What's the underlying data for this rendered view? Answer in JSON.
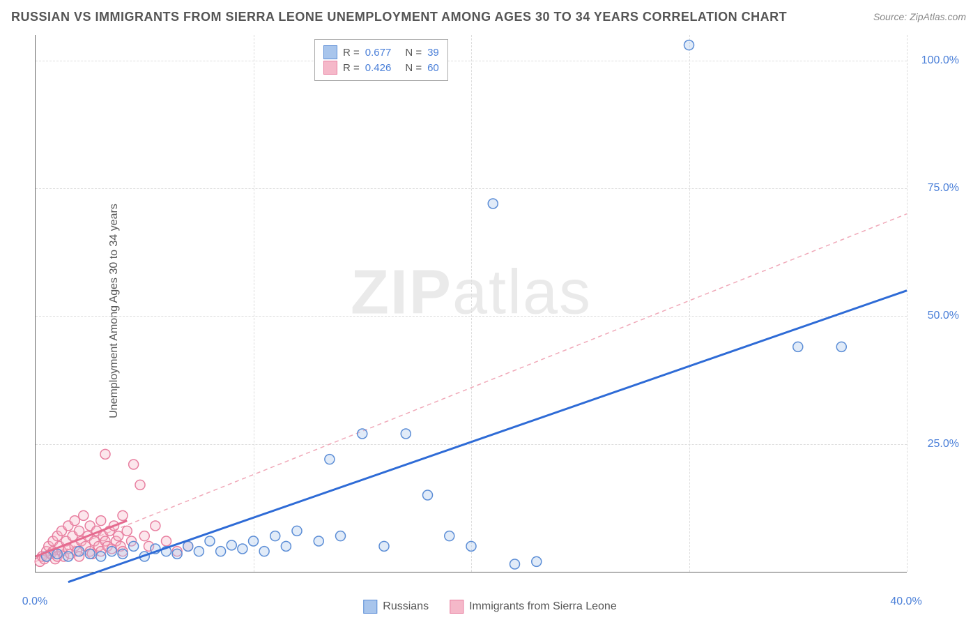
{
  "title": "RUSSIAN VS IMMIGRANTS FROM SIERRA LEONE UNEMPLOYMENT AMONG AGES 30 TO 34 YEARS CORRELATION CHART",
  "source": "Source: ZipAtlas.com",
  "y_axis_label": "Unemployment Among Ages 30 to 34 years",
  "watermark": {
    "bold": "ZIP",
    "light": "atlas"
  },
  "chart": {
    "type": "scatter",
    "xlim": [
      0,
      40
    ],
    "ylim": [
      0,
      105
    ],
    "x_ticks": [
      0,
      40
    ],
    "x_tick_labels": [
      "0.0%",
      "40.0%"
    ],
    "y_ticks": [
      25,
      50,
      75,
      100
    ],
    "y_tick_labels": [
      "25.0%",
      "50.0%",
      "75.0%",
      "100.0%"
    ],
    "x_grid": [
      10,
      20,
      30,
      40
    ],
    "y_grid": [
      25,
      50,
      75,
      100
    ],
    "background_color": "#ffffff",
    "grid_color": "#dddddd",
    "axis_color": "#666666",
    "tick_label_color": "#4a7fd8",
    "marker_radius": 7,
    "marker_stroke_width": 1.5,
    "marker_fill_opacity": 0.35,
    "series": [
      {
        "name": "Russians",
        "color_fill": "#a8c5ec",
        "color_stroke": "#5b8dd6",
        "R": "0.677",
        "N": "39",
        "trend": {
          "x1": 1.5,
          "y1": -2,
          "x2": 40,
          "y2": 55,
          "color": "#2e6bd6",
          "width": 3,
          "dash": null
        },
        "points": [
          [
            0.5,
            3
          ],
          [
            1,
            3.5
          ],
          [
            1.5,
            3
          ],
          [
            2,
            4
          ],
          [
            2.5,
            3.5
          ],
          [
            3,
            3
          ],
          [
            3.5,
            4
          ],
          [
            4,
            3.5
          ],
          [
            4.5,
            5
          ],
          [
            5,
            3
          ],
          [
            5.5,
            4.5
          ],
          [
            6,
            4
          ],
          [
            6.5,
            3.5
          ],
          [
            7,
            5
          ],
          [
            7.5,
            4
          ],
          [
            8,
            6
          ],
          [
            8.5,
            4
          ],
          [
            9,
            5.2
          ],
          [
            9.5,
            4.5
          ],
          [
            10,
            6
          ],
          [
            10.5,
            4
          ],
          [
            11,
            7
          ],
          [
            11.5,
            5
          ],
          [
            12,
            8
          ],
          [
            13,
            6
          ],
          [
            13.5,
            22
          ],
          [
            14,
            7
          ],
          [
            15,
            27
          ],
          [
            16,
            5
          ],
          [
            17,
            27
          ],
          [
            18,
            15
          ],
          [
            19,
            7
          ],
          [
            20,
            5
          ],
          [
            21,
            72
          ],
          [
            22,
            1.5
          ],
          [
            23,
            2
          ],
          [
            30,
            103
          ],
          [
            35,
            44
          ],
          [
            37,
            44
          ]
        ]
      },
      {
        "name": "Immigrants from Sierra Leone",
        "color_fill": "#f5b8c9",
        "color_stroke": "#e87fa0",
        "R": "0.426",
        "N": "60",
        "trend_solid": {
          "x1": 0,
          "y1": 3,
          "x2": 4.2,
          "y2": 10,
          "color": "#e56b8f",
          "width": 3
        },
        "trend_dashed": {
          "x1": 0,
          "y1": 2,
          "x2": 40,
          "y2": 70,
          "color": "#f0a8b8",
          "width": 1.5,
          "dash": "6,5"
        },
        "points": [
          [
            0.2,
            2
          ],
          [
            0.3,
            3
          ],
          [
            0.4,
            2.5
          ],
          [
            0.5,
            4
          ],
          [
            0.5,
            3
          ],
          [
            0.6,
            5
          ],
          [
            0.7,
            3.5
          ],
          [
            0.8,
            6
          ],
          [
            0.8,
            4
          ],
          [
            0.9,
            2.5
          ],
          [
            1,
            7
          ],
          [
            1,
            3
          ],
          [
            1.1,
            5
          ],
          [
            1.2,
            8
          ],
          [
            1.2,
            4
          ],
          [
            1.3,
            3
          ],
          [
            1.4,
            6
          ],
          [
            1.5,
            9
          ],
          [
            1.5,
            4.5
          ],
          [
            1.6,
            3.5
          ],
          [
            1.7,
            7
          ],
          [
            1.8,
            5
          ],
          [
            1.8,
            10
          ],
          [
            1.9,
            4
          ],
          [
            2,
            8
          ],
          [
            2,
            3
          ],
          [
            2.1,
            6
          ],
          [
            2.2,
            11
          ],
          [
            2.3,
            5
          ],
          [
            2.4,
            7
          ],
          [
            2.5,
            4
          ],
          [
            2.5,
            9
          ],
          [
            2.6,
            3.5
          ],
          [
            2.7,
            6
          ],
          [
            2.8,
            8
          ],
          [
            2.9,
            5
          ],
          [
            3,
            10
          ],
          [
            3,
            4
          ],
          [
            3.1,
            7
          ],
          [
            3.2,
            6
          ],
          [
            3.2,
            23
          ],
          [
            3.3,
            5
          ],
          [
            3.4,
            8
          ],
          [
            3.5,
            4.5
          ],
          [
            3.6,
            9
          ],
          [
            3.7,
            6
          ],
          [
            3.8,
            7
          ],
          [
            3.9,
            5
          ],
          [
            4,
            11
          ],
          [
            4,
            4
          ],
          [
            4.2,
            8
          ],
          [
            4.4,
            6
          ],
          [
            4.5,
            21
          ],
          [
            4.8,
            17
          ],
          [
            5,
            7
          ],
          [
            5.2,
            5
          ],
          [
            5.5,
            9
          ],
          [
            6,
            6
          ],
          [
            6.5,
            4
          ],
          [
            7,
            5
          ]
        ]
      }
    ]
  },
  "stats_legend": {
    "label_color": "#555555",
    "value_color": "#4a7fd8"
  },
  "bottom_legend": [
    {
      "label": "Russians",
      "fill": "#a8c5ec",
      "stroke": "#5b8dd6"
    },
    {
      "label": "Immigrants from Sierra Leone",
      "fill": "#f5b8c9",
      "stroke": "#e87fa0"
    }
  ]
}
